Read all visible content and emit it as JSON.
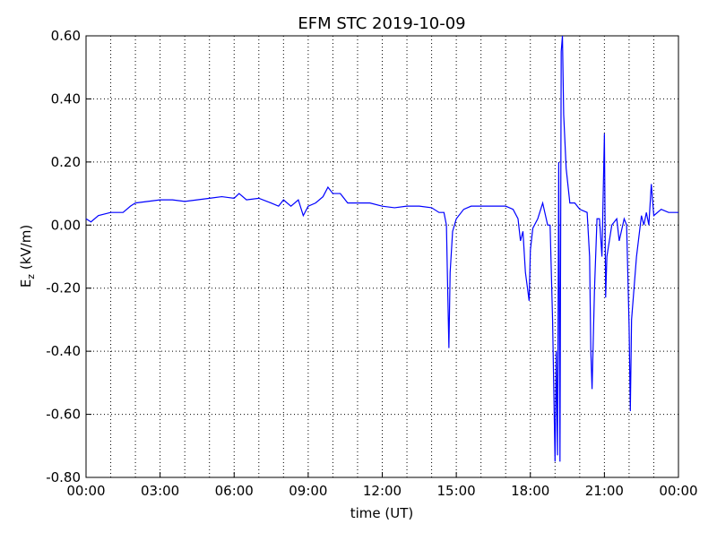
{
  "chart_data": {
    "type": "line",
    "title": "EFM STC    2019-10-09",
    "xlabel": "time (UT)",
    "ylabel": [
      "E",
      "z",
      " (kV/m)"
    ],
    "xlim": [
      0,
      24
    ],
    "ylim": [
      -0.8,
      0.6
    ],
    "xticks": [
      {
        "value": 0,
        "label": "00:00"
      },
      {
        "value": 3,
        "label": "03:00"
      },
      {
        "value": 6,
        "label": "06:00"
      },
      {
        "value": 9,
        "label": "09:00"
      },
      {
        "value": 12,
        "label": "12:00"
      },
      {
        "value": 15,
        "label": "15:00"
      },
      {
        "value": 18,
        "label": "18:00"
      },
      {
        "value": 21,
        "label": "21:00"
      },
      {
        "value": 24,
        "label": "00:00"
      }
    ],
    "xminorticks": [
      1,
      2,
      4,
      5,
      7,
      8,
      10,
      11,
      13,
      14,
      16,
      17,
      19,
      20,
      22,
      23
    ],
    "yticks": [
      {
        "value": -0.8,
        "label": "-0.80"
      },
      {
        "value": -0.6,
        "label": "-0.60"
      },
      {
        "value": -0.4,
        "label": "-0.40"
      },
      {
        "value": -0.2,
        "label": "-0.20"
      },
      {
        "value": 0,
        "label": "0.00"
      },
      {
        "value": 0.2,
        "label": "0.20"
      },
      {
        "value": 0.4,
        "label": "0.40"
      },
      {
        "value": 0.6,
        "label": "0.60"
      }
    ],
    "grid": true,
    "series": [
      {
        "color": "#0000ff",
        "x": [
          0,
          0.2,
          0.5,
          1,
          1.5,
          1.8,
          2,
          2.5,
          3,
          3.5,
          4,
          4.5,
          5,
          5.5,
          6,
          6.2,
          6.5,
          7,
          7.5,
          7.8,
          8,
          8.3,
          8.6,
          8.8,
          9,
          9.3,
          9.6,
          9.8,
          10,
          10.3,
          10.6,
          11,
          11.5,
          12,
          12.5,
          13,
          13.5,
          14,
          14.3,
          14.5,
          14.6,
          14.65,
          14.7,
          14.75,
          14.85,
          15,
          15.3,
          15.6,
          16,
          16.5,
          17,
          17.3,
          17.5,
          17.6,
          17.7,
          17.8,
          17.95,
          18,
          18.1,
          18.3,
          18.5,
          18.7,
          18.8,
          18.9,
          19,
          19.05,
          19.1,
          19.15,
          19.2,
          19.25,
          19.3,
          19.35,
          19.45,
          19.6,
          19.8,
          20,
          20.3,
          20.4,
          20.45,
          20.5,
          20.6,
          20.7,
          20.8,
          20.9,
          21,
          21.05,
          21.1,
          21.3,
          21.5,
          21.6,
          21.8,
          21.9,
          22,
          22.05,
          22.1,
          22.3,
          22.5,
          22.6,
          22.7,
          22.8,
          22.9,
          23,
          23.3,
          23.6,
          24
        ],
        "values": [
          0.02,
          0.01,
          0.03,
          0.04,
          0.04,
          0.06,
          0.07,
          0.075,
          0.08,
          0.08,
          0.075,
          0.08,
          0.085,
          0.09,
          0.085,
          0.1,
          0.08,
          0.085,
          0.07,
          0.06,
          0.08,
          0.06,
          0.08,
          0.03,
          0.06,
          0.07,
          0.09,
          0.12,
          0.1,
          0.1,
          0.07,
          0.07,
          0.07,
          0.06,
          0.055,
          0.06,
          0.06,
          0.055,
          0.04,
          0.04,
          0.0,
          -0.2,
          -0.39,
          -0.15,
          -0.02,
          0.02,
          0.05,
          0.06,
          0.06,
          0.06,
          0.06,
          0.05,
          0.02,
          -0.05,
          -0.02,
          -0.15,
          -0.24,
          -0.08,
          -0.01,
          0.02,
          0.07,
          0.0,
          0.0,
          -0.3,
          -0.75,
          -0.4,
          -0.73,
          0.2,
          -0.75,
          0.55,
          0.6,
          0.35,
          0.18,
          0.07,
          0.07,
          0.05,
          0.04,
          -0.1,
          -0.4,
          -0.52,
          -0.2,
          0.02,
          0.02,
          -0.1,
          0.29,
          -0.23,
          -0.1,
          0.0,
          0.02,
          -0.05,
          0.02,
          0.0,
          -0.32,
          -0.59,
          -0.3,
          -0.1,
          0.03,
          0.0,
          0.04,
          0.0,
          0.13,
          0.03,
          0.05,
          0.04,
          0.04
        ]
      }
    ]
  }
}
